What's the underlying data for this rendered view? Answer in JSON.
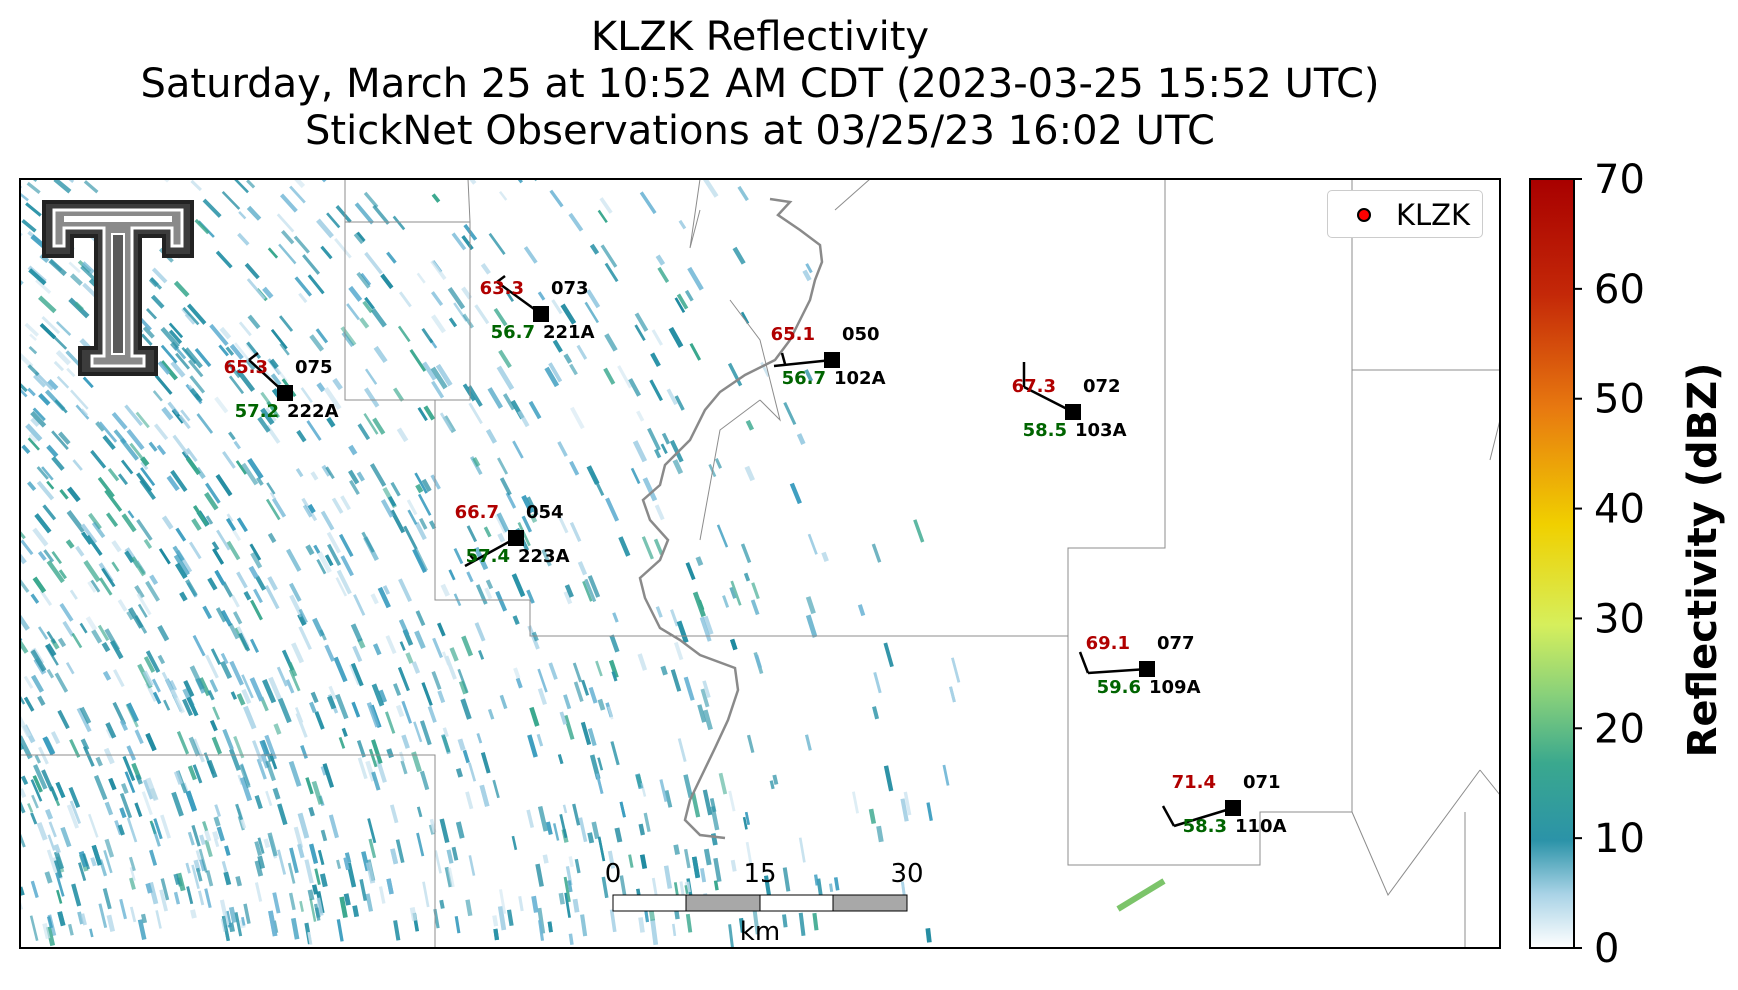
{
  "title": {
    "line1": "KLZK Reflectivity",
    "line2": "Saturday, March 25 at 10:52 AM CDT (2023-03-25 15:52 UTC)",
    "line3": "StickNet Observations at 03/25/23 16:02 UTC"
  },
  "legend": {
    "label": "KLZK",
    "marker_color": "#ff0000"
  },
  "colorbar": {
    "label": "Reflectivity (dBZ)",
    "range": [
      0,
      70
    ],
    "ticks": [
      "0",
      "10",
      "20",
      "30",
      "40",
      "50",
      "60",
      "70"
    ],
    "colors": [
      "#ffffff",
      "#2b93a8",
      "#89d17a",
      "#d6ef5c",
      "#f0d000",
      "#e87a10",
      "#c42808",
      "#a80000"
    ]
  },
  "scale_bar": {
    "ticks": [
      "0",
      "15",
      "30"
    ],
    "unit": "km"
  },
  "colors": {
    "temperature": "#b00000",
    "dewpoint": "#006400",
    "station": "#000000"
  },
  "chart_data": {
    "type": "scatter",
    "title": "KLZK Reflectivity",
    "description_field": "radar reflectivity with station plots",
    "stations": [
      {
        "id": "222A",
        "temp": "65.3",
        "dewpoint": "57.2",
        "pressure": "075"
      },
      {
        "id": "221A",
        "temp": "63.3",
        "dewpoint": "56.7",
        "pressure": "073"
      },
      {
        "id": "102A",
        "temp": "65.1",
        "dewpoint": "56.7",
        "pressure": "050"
      },
      {
        "id": "103A",
        "temp": "67.3",
        "dewpoint": "58.5",
        "pressure": "072"
      },
      {
        "id": "223A",
        "temp": "66.7",
        "dewpoint": "57.4",
        "pressure": "054"
      },
      {
        "id": "109A",
        "temp": "69.1",
        "dewpoint": "59.6",
        "pressure": "077"
      },
      {
        "id": "110A",
        "temp": "71.4",
        "dewpoint": "58.3",
        "pressure": "071"
      }
    ]
  }
}
